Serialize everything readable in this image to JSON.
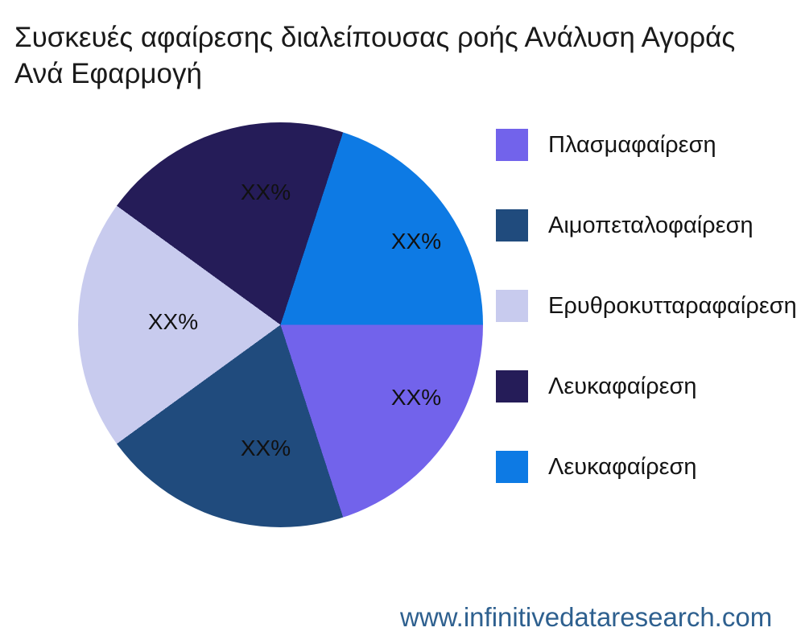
{
  "title": {
    "line1": "Συσκευές αφαίρεσης διαλείπουσας ροής Ανάλυση Αγοράς",
    "line2": "Ανά Εφαρμογή"
  },
  "chart_data": {
    "type": "pie",
    "title": "Συσκευές αφαίρεσης διαλείπουσας ροής Ανάλυση Αγοράς Ανά Εφαρμογή",
    "start_angle_deg": 0,
    "direction": "clockwise",
    "legend_position": "right",
    "slices": [
      {
        "label": "Πλασμαφαίρεση",
        "pct_label": "XX%",
        "value_pct": 20,
        "color": "#7263EB"
      },
      {
        "label": "Αιμοπεταλοφαίρεση",
        "pct_label": "XX%",
        "value_pct": 20,
        "color": "#204B7D"
      },
      {
        "label": "Ερυθροκυτταραφαίρεση",
        "pct_label": "XX%",
        "value_pct": 20,
        "color": "#C8CBEE"
      },
      {
        "label": "Λευκαφαίρεση",
        "pct_label": "XX%",
        "value_pct": 20,
        "color": "#251C58"
      },
      {
        "label": "Λευκαφαίρεση",
        "pct_label": "XX%",
        "value_pct": 20,
        "color": "#0D7AE4"
      }
    ]
  },
  "footer": {
    "website": "www.infinitivedataresearch.com",
    "website_color": "#2E608F"
  }
}
